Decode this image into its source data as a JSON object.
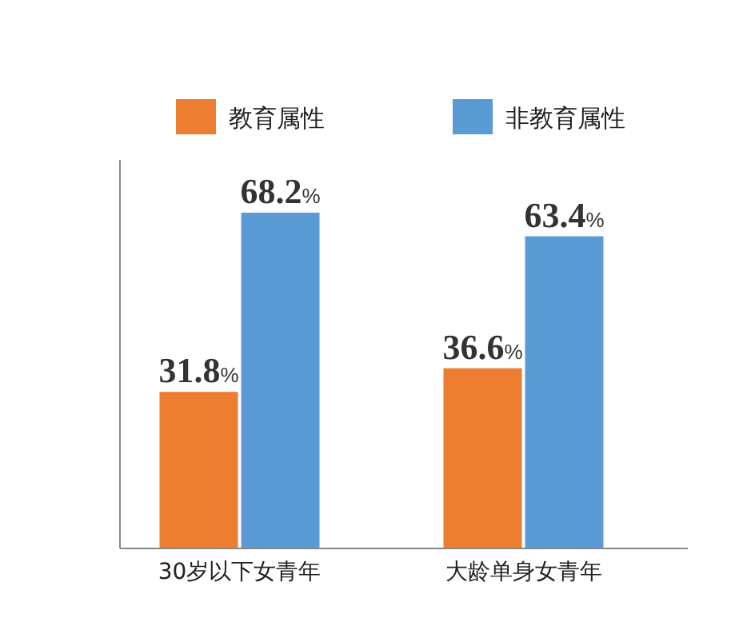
{
  "chart_data": {
    "type": "bar",
    "categories": [
      "30岁以下女青年",
      "大龄单身女青年"
    ],
    "series": [
      {
        "name": "教育属性",
        "color": "#ed7d31",
        "values": [
          31.8,
          36.6
        ],
        "value_labels": [
          "31.8%",
          "36.6%"
        ]
      },
      {
        "name": "非教育属性",
        "color": "#5b9bd5",
        "values": [
          68.2,
          63.4
        ],
        "value_labels": [
          "68.2%",
          "63.4%"
        ]
      }
    ],
    "legend": "top"
  }
}
